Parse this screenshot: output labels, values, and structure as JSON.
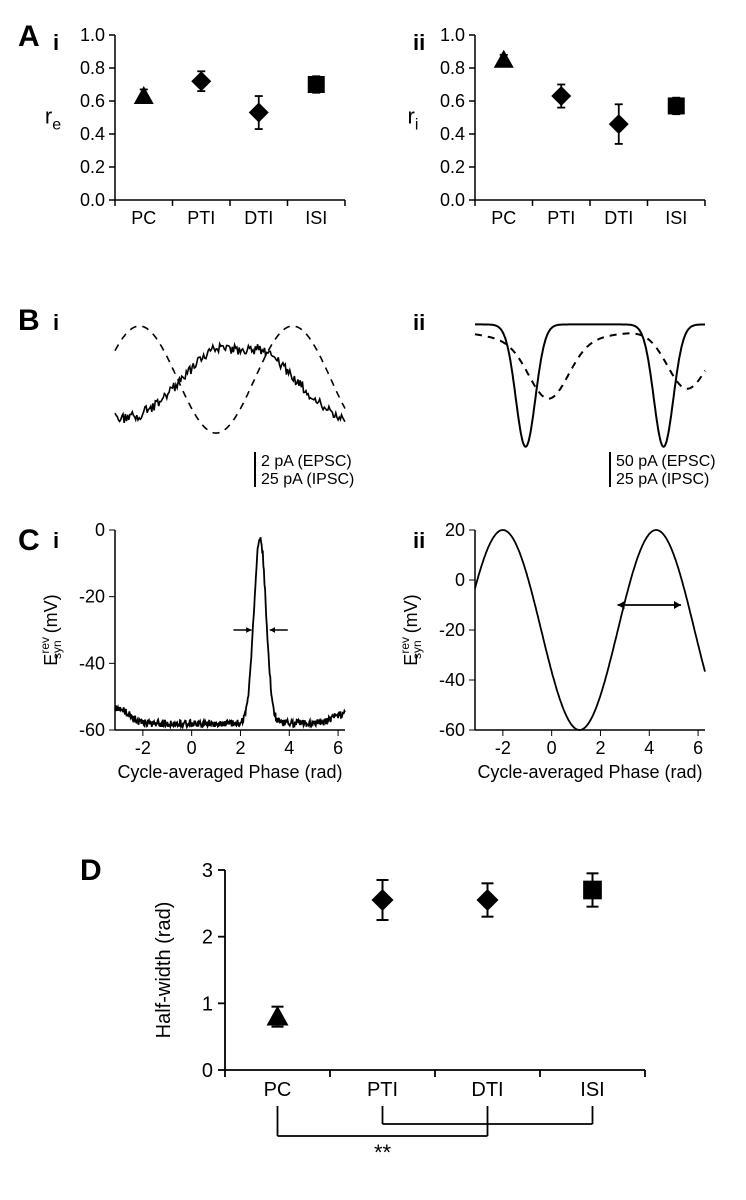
{
  "panelA": {
    "label": "A",
    "labelFontSize": 30,
    "subLabelFontSize": 22,
    "sub": [
      "i",
      "ii"
    ],
    "ylabel_i": "rₑ",
    "ylabel_ii": "rᵢ",
    "labelFontSizeAxis": 20,
    "tickFontSize": 18,
    "categories": [
      "PC",
      "PTI",
      "DTI",
      "ISI"
    ],
    "ylim": [
      0,
      1.0
    ],
    "yticks": [
      0.0,
      0.2,
      0.4,
      0.6,
      0.8,
      1.0
    ],
    "i": {
      "points": [
        {
          "cat": "PC",
          "y": 0.63,
          "errLow": 0.04,
          "errHigh": 0.04,
          "marker": "triangle"
        },
        {
          "cat": "PTI",
          "y": 0.72,
          "errLow": 0.06,
          "errHigh": 0.06,
          "marker": "diamond"
        },
        {
          "cat": "DTI",
          "y": 0.53,
          "errLow": 0.1,
          "errHigh": 0.1,
          "marker": "diamond"
        },
        {
          "cat": "ISI",
          "y": 0.7,
          "errLow": 0.05,
          "errHigh": 0.05,
          "marker": "square"
        }
      ]
    },
    "ii": {
      "points": [
        {
          "cat": "PC",
          "y": 0.85,
          "errLow": 0.03,
          "errHigh": 0.03,
          "marker": "triangle"
        },
        {
          "cat": "PTI",
          "y": 0.63,
          "errLow": 0.07,
          "errHigh": 0.07,
          "marker": "diamond"
        },
        {
          "cat": "DTI",
          "y": 0.46,
          "errLow": 0.12,
          "errHigh": 0.12,
          "marker": "diamond"
        },
        {
          "cat": "ISI",
          "y": 0.57,
          "errLow": 0.05,
          "errHigh": 0.05,
          "marker": "square"
        }
      ]
    },
    "axisColor": "#000000",
    "markerSize": 10,
    "errCapWidth": 8,
    "strokeWidth": 1.8
  },
  "panelB": {
    "label": "B",
    "sub": [
      "i",
      "ii"
    ],
    "scaleText_i_line1": "2 pA (EPSC)",
    "scaleText_i_line2": "25 pA (IPSC)",
    "scaleText_ii_line1": "50 pA (EPSC)",
    "scaleText_ii_line2": "25 pA (IPSC)",
    "scaleBarHeight_i": 35,
    "scaleBarHeight_ii": 35,
    "textFontSize": 16
  },
  "panelC": {
    "label": "C",
    "sub": [
      "i",
      "ii"
    ],
    "xlabel": "Cycle-averaged Phase (rad)",
    "ylabel": "E_syn^rev (mV)",
    "xlim": [
      -3.14159,
      6.28318
    ],
    "xticks": [
      -2,
      0,
      2,
      4,
      6
    ],
    "i": {
      "ylim": [
        -60,
        0
      ],
      "yticks": [
        0,
        -20,
        -40,
        -60
      ]
    },
    "ii": {
      "ylim": [
        -60,
        20
      ],
      "yticks": [
        20,
        0,
        -20,
        -40,
        -60
      ]
    },
    "labelFontSize": 18,
    "tickFontSize": 18
  },
  "panelD": {
    "label": "D",
    "ylabel": "Half-width (rad)",
    "categories": [
      "PC",
      "PTI",
      "DTI",
      "ISI"
    ],
    "ylim": [
      0,
      3
    ],
    "yticks": [
      0,
      1,
      2,
      3
    ],
    "points": [
      {
        "cat": "PC",
        "y": 0.8,
        "errLow": 0.15,
        "errHigh": 0.15,
        "marker": "triangle"
      },
      {
        "cat": "PTI",
        "y": 2.55,
        "errLow": 0.3,
        "errHigh": 0.3,
        "marker": "diamond"
      },
      {
        "cat": "DTI",
        "y": 2.55,
        "errLow": 0.25,
        "errHigh": 0.25,
        "marker": "diamond"
      },
      {
        "cat": "ISI",
        "y": 2.7,
        "errLow": 0.25,
        "errHigh": 0.25,
        "marker": "square"
      }
    ],
    "sigText": "**",
    "labelFontSize": 20,
    "tickFontSize": 20,
    "markerSize": 11,
    "strokeWidth": 2
  }
}
